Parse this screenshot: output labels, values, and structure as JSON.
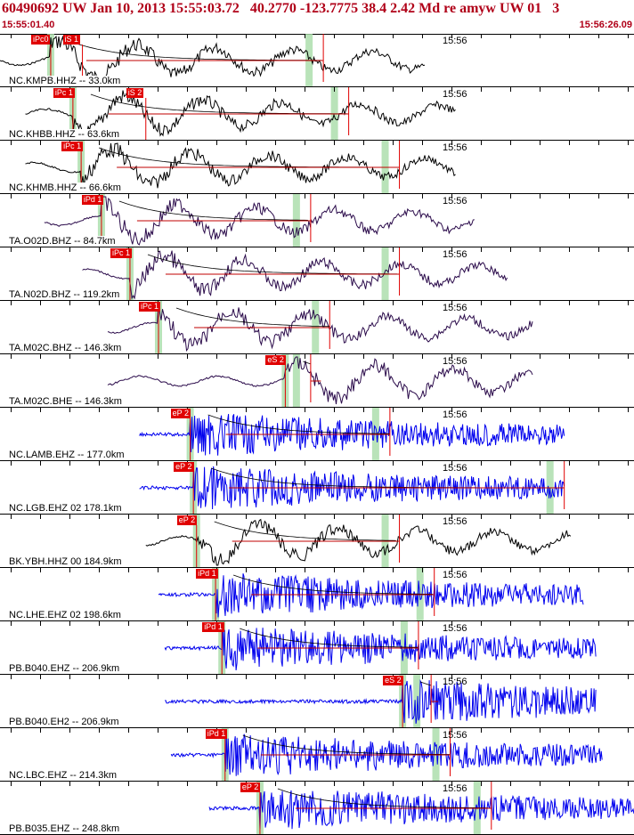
{
  "header": {
    "title": "60490692 UW Jan 10, 2013 15:55:03.72   40.2770 -123.7775 38.4 2.42 Md re amyw UW 01   3",
    "start_time": "15:55:01.40",
    "end_time": "15:56:26.09"
  },
  "colors": {
    "broadband": "#000000",
    "long_period": "#2a0a4a",
    "short_period": "#0000ee",
    "pick": "#e00000",
    "coda": "#c00000",
    "window": "#a8dca8"
  },
  "traces": [
    {
      "station": "NC.KMPB.HHZ -- 33.0km",
      "time": "15:56",
      "picks": [
        {
          "label": "iPc0",
          "t": 0.08
        },
        {
          "label": "iS 1",
          "t": 0.13
        }
      ],
      "color": "broadband",
      "start": 0.0,
      "end": 0.67,
      "pick_line": 0.51
    },
    {
      "station": "NC.KHBB.HHZ -- 63.6km",
      "time": "15:56",
      "picks": [
        {
          "label": "iPc 1",
          "t": 0.115
        },
        {
          "label": "iS 2",
          "t": 0.23
        }
      ],
      "color": "broadband",
      "start": 0.04,
      "end": 0.72,
      "pick_line": 0.55
    },
    {
      "station": "NC.KHMB.HHZ -- 66.6km",
      "time": "15:56",
      "picks": [
        {
          "label": "iPc 1",
          "t": 0.128
        }
      ],
      "color": "broadband",
      "start": 0.04,
      "end": 0.72,
      "pick_line": 0.63
    },
    {
      "station": "TA.O02D.BHZ -- 84.7km",
      "time": "15:56",
      "picks": [
        {
          "label": "iPd 1",
          "t": 0.16
        }
      ],
      "color": "long_period",
      "start": 0.07,
      "end": 0.75,
      "pick_line": 0.49
    },
    {
      "station": "TA.N02D.BHZ -- 119.2km",
      "time": "15:56",
      "picks": [
        {
          "label": "iPc 1",
          "t": 0.205
        }
      ],
      "color": "long_period",
      "start": 0.13,
      "end": 0.8,
      "pick_line": 0.63
    },
    {
      "station": "TA.M02C.BHZ -- 146.3km",
      "time": "15:56",
      "picks": [
        {
          "label": "iPc 1",
          "t": 0.25
        }
      ],
      "color": "long_period",
      "start": 0.17,
      "end": 0.84,
      "pick_line": 0.52
    },
    {
      "station": "TA.M02C.BHE -- 146.3km",
      "time": "15:56",
      "picks": [
        {
          "label": "eS 2",
          "t": 0.45
        }
      ],
      "color": "long_period",
      "start": 0.17,
      "end": 0.84,
      "pick_line": 0.49
    },
    {
      "station": "NC.LAMB.EHZ -- 177.0km",
      "time": "15:56",
      "picks": [
        {
          "label": "eP 2",
          "t": 0.3
        }
      ],
      "color": "short_period",
      "start": 0.22,
      "end": 0.89,
      "pick_line": 0.615
    },
    {
      "station": "NC.LGB.EHZ 02 178.1km",
      "time": "15:56",
      "picks": [
        {
          "label": "eP 2",
          "t": 0.305
        }
      ],
      "color": "short_period",
      "start": 0.22,
      "end": 0.89,
      "pick_line": 0.89
    },
    {
      "station": "BK.YBH.HHZ 00 184.9km",
      "time": "15:56",
      "picks": [
        {
          "label": "eP 2",
          "t": 0.31
        }
      ],
      "color": "broadband",
      "start": 0.23,
      "end": 0.9,
      "pick_line": 0.63
    },
    {
      "station": "NC.LHE.EHZ 02 198.6km",
      "time": "15:56",
      "picks": [
        {
          "label": "iPd 1",
          "t": 0.34
        }
      ],
      "color": "short_period",
      "start": 0.25,
      "end": 0.92,
      "pick_line": 0.685
    },
    {
      "station": "PB.B040.EHZ -- 206.9km",
      "time": "15:56",
      "picks": [
        {
          "label": "iPd 1",
          "t": 0.35
        }
      ],
      "color": "short_period",
      "start": 0.26,
      "end": 0.94,
      "pick_line": 0.66
    },
    {
      "station": "PB.B040.EH2 -- 206.9km",
      "time": "15:56",
      "picks": [
        {
          "label": "eS 2",
          "t": 0.635
        }
      ],
      "color": "short_period",
      "start": 0.26,
      "end": 0.94,
      "pick_line": 0.68
    },
    {
      "station": "NC.LBC.EHZ -- 214.3km",
      "time": "15:56",
      "picks": [
        {
          "label": "iPd 1",
          "t": 0.355
        }
      ],
      "color": "short_period",
      "start": 0.27,
      "end": 0.95,
      "pick_line": 0.71
    },
    {
      "station": "PB.B035.EHZ -- 248.8km",
      "time": "15:56",
      "picks": [
        {
          "label": "eP 2",
          "t": 0.41
        }
      ],
      "color": "short_period",
      "start": 0.33,
      "end": 1.0,
      "pick_line": 0.775
    }
  ]
}
